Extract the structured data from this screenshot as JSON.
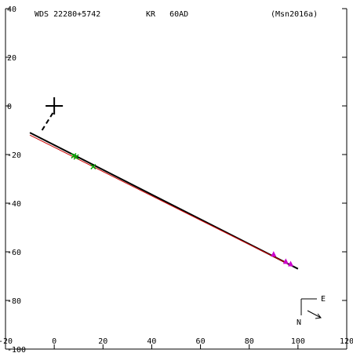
{
  "header": {
    "star": "WDS 22280+5742",
    "pair": "KR   60AD",
    "ref": "(Msn2016a)"
  },
  "compass": {
    "east": "E",
    "north": "N"
  },
  "chart_data": {
    "type": "scatter",
    "title": "",
    "xlabel": "",
    "ylabel": "",
    "xlim": [
      -20,
      120
    ],
    "ylim": [
      -100,
      40
    ],
    "x_ticks": [
      -20,
      0,
      20,
      40,
      60,
      80,
      100,
      120
    ],
    "y_ticks": [
      40,
      20,
      0,
      -20,
      -40,
      -60,
      -80,
      -100
    ],
    "primary": {
      "x": 0,
      "y": 0,
      "marker": "cross"
    },
    "dashed_line": [
      [
        -5,
        -10
      ],
      [
        0,
        -2
      ]
    ],
    "fit_lines": [
      {
        "color": "#000000",
        "from": [
          -10,
          -11
        ],
        "to": [
          100,
          -67
        ]
      },
      {
        "color": "#cc0000",
        "from": [
          -10,
          -12
        ],
        "to": [
          96,
          -65
        ]
      }
    ],
    "points": [
      {
        "x": 8,
        "y": -20.5,
        "color": "#00aa00",
        "marker": "x"
      },
      {
        "x": 9,
        "y": -21,
        "color": "#00aa00",
        "marker": "x"
      },
      {
        "x": 16,
        "y": -25,
        "color": "#00aa00",
        "marker": "x"
      },
      {
        "x": 90,
        "y": -61,
        "color": "#cc00cc",
        "marker": "triangle"
      },
      {
        "x": 95,
        "y": -64,
        "color": "#cc00cc",
        "marker": "triangle"
      },
      {
        "x": 97,
        "y": -65,
        "color": "#cc00cc",
        "marker": "triangle"
      }
    ]
  }
}
